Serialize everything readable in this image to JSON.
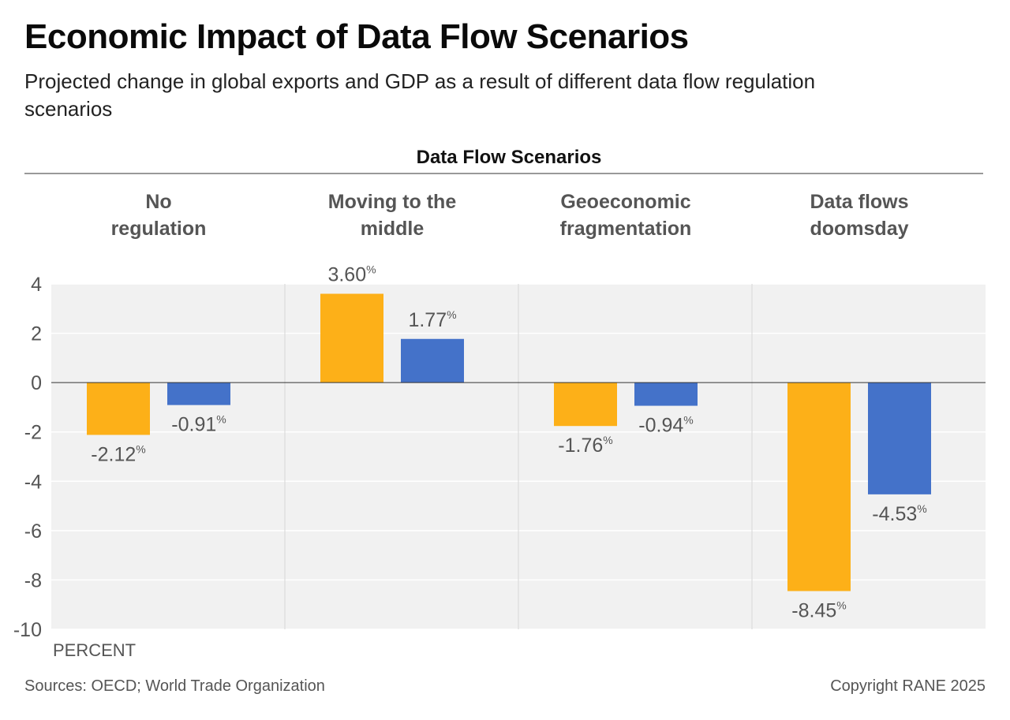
{
  "title": "Economic Impact of Data Flow Scenarios",
  "subtitle": "Projected change in global exports and GDP as a result of different data flow regulation scenarios",
  "footer": {
    "sources": "Sources: OECD; World Trade Organization",
    "copyright": "Copyright RANE 2025"
  },
  "chart_data": {
    "type": "bar",
    "group_header": "Data Flow Scenarios",
    "categories": [
      [
        "No",
        "regulation"
      ],
      [
        "Moving to the",
        "middle"
      ],
      [
        "Geoeconomic",
        "fragmentation"
      ],
      [
        "Data flows",
        "doomsday"
      ]
    ],
    "series": [
      {
        "color": "#FDB018",
        "values": [
          -2.12,
          3.6,
          -1.76,
          -8.45
        ],
        "labels": [
          "-2.12",
          "3.60",
          "-1.76",
          "-8.45"
        ]
      },
      {
        "color": "#4472C9",
        "values": [
          -0.91,
          1.77,
          -0.94,
          -4.53
        ],
        "labels": [
          "-0.91",
          "1.77",
          "-0.94",
          "-4.53"
        ]
      }
    ],
    "value_suffix": "%",
    "yticks": [
      "4",
      "2",
      "0",
      "-2",
      "-4",
      "-6",
      "-8",
      "-10"
    ],
    "ylim": [
      -10,
      4
    ],
    "ylabel": "PERCENT",
    "grid": true,
    "legend": "none",
    "colors": {
      "plot_bg": "#F1F1F1",
      "grid": "#FFFFFF",
      "zero_line": "#333333"
    }
  }
}
